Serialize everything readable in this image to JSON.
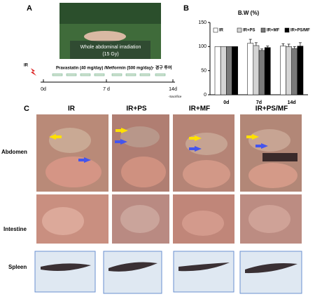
{
  "panel_a": {
    "letter": "A",
    "photo_caption": "Whole abdominal  irradiation",
    "photo_dose": "(15 Gy)",
    "ir_label": "IR",
    "treatment": "Pravastatin (40 mg/day) /Metformin (500 mg/day)- 경구 투여",
    "timepoints": [
      "0d",
      "7 d",
      "14d"
    ],
    "sacrifice": "-Sacrifice"
  },
  "panel_b": {
    "letter": "B"
  },
  "chart_data": {
    "type": "bar",
    "title": "B.W (%)",
    "categories": [
      "0d",
      "7d",
      "14d"
    ],
    "series": [
      {
        "name": "IR",
        "color": "#ffffff",
        "values": [
          100,
          107,
          101
        ],
        "errors": [
          0,
          8,
          5
        ]
      },
      {
        "name": "IR+PS",
        "color": "#d4d4d4",
        "values": [
          100,
          102,
          100
        ],
        "errors": [
          0,
          6,
          5
        ]
      },
      {
        "name": "IR+MF",
        "color": "#7a7a7a",
        "values": [
          100,
          92,
          96
        ],
        "errors": [
          0,
          3,
          4
        ]
      },
      {
        "name": "IR+PS/MF",
        "color": "#000000",
        "values": [
          100,
          98,
          101
        ],
        "errors": [
          0,
          3,
          7
        ]
      }
    ],
    "ylim": [
      0,
      150
    ],
    "yticks": [
      0,
      50,
      100,
      150
    ]
  },
  "panel_c": {
    "letter": "C",
    "columns": [
      "IR",
      "IR+PS",
      "IR+MF",
      "IR+PS/MF"
    ],
    "rows": [
      "Abdomen",
      "Intestine",
      "Spleen"
    ]
  }
}
